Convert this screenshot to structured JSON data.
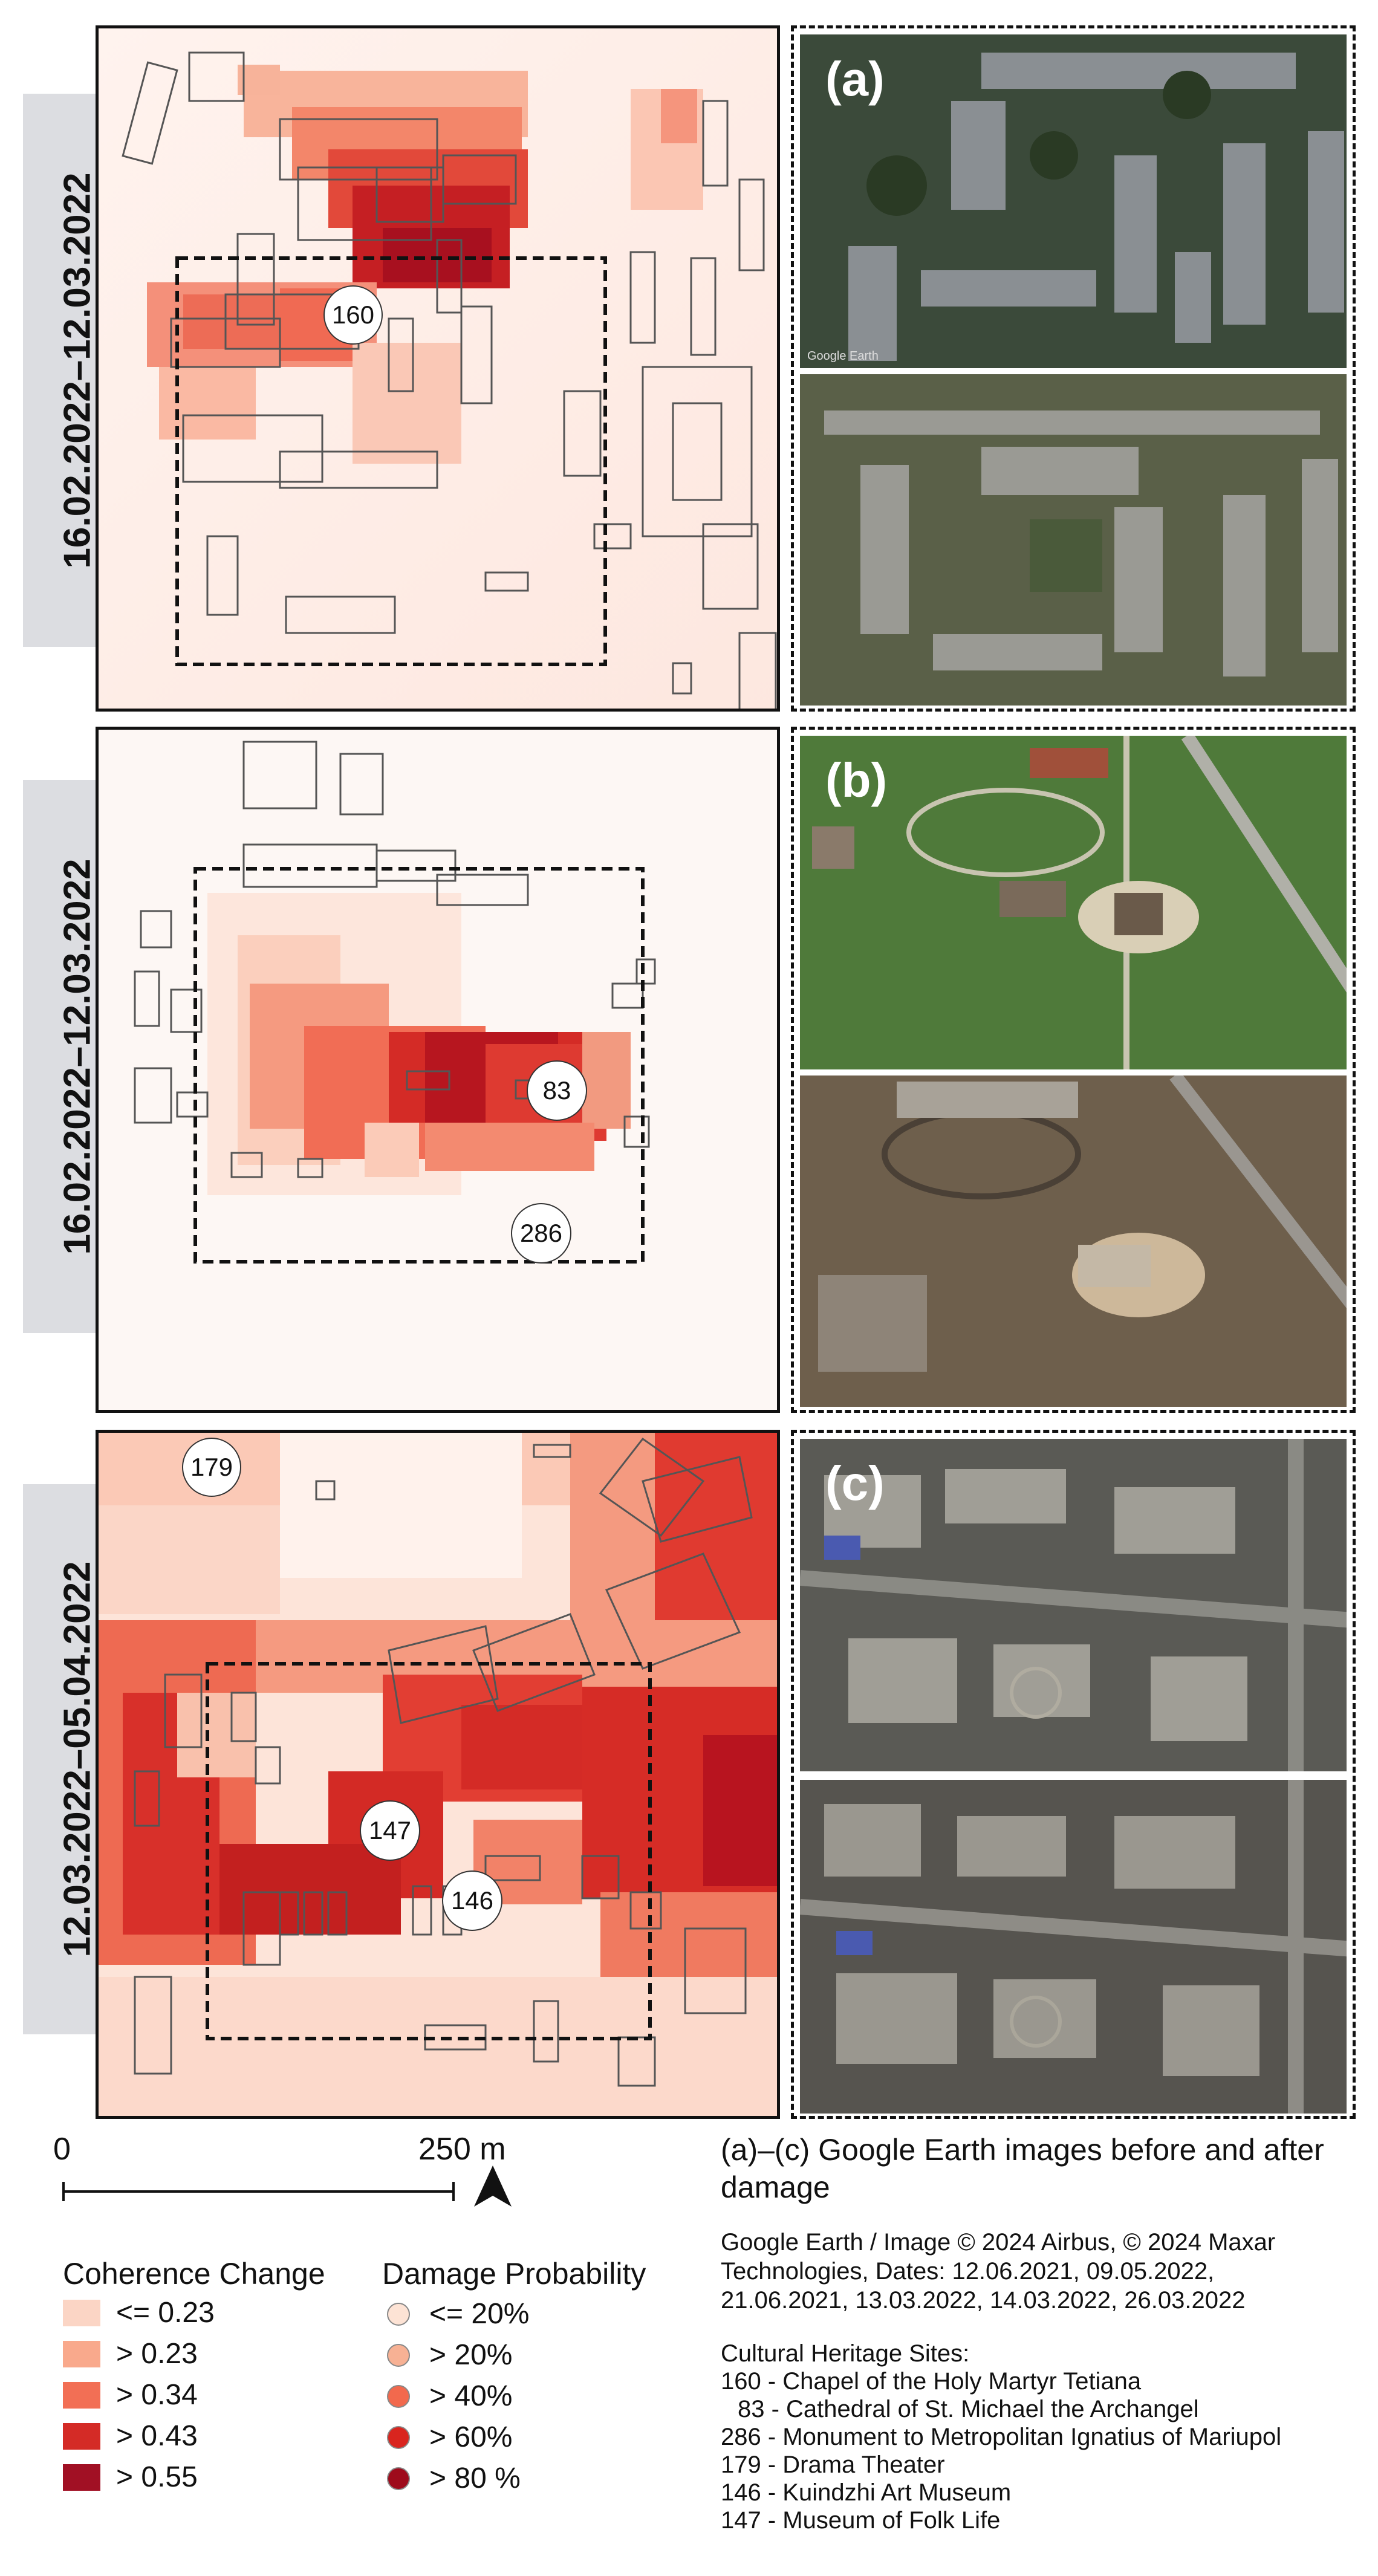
{
  "panels": [
    {
      "date_range": "16.02.2022–12.03.2022",
      "letter": "(a)",
      "sites": [
        {
          "id": "160"
        }
      ]
    },
    {
      "date_range": "16.02.2022–12.03.2022",
      "letter": "(b)",
      "sites": [
        {
          "id": "83"
        },
        {
          "id": "286"
        }
      ]
    },
    {
      "date_range": "12.03.2022–05.04.2022",
      "letter": "(c)",
      "sites": [
        {
          "id": "179"
        },
        {
          "id": "147"
        },
        {
          "id": "146"
        }
      ]
    }
  ],
  "google_watermark": "Google Earth",
  "scale_bar": {
    "start_label": "0",
    "end_label": "250 m"
  },
  "north_arrow_icon": "north-arrow-icon",
  "coherence_legend": {
    "title": "Coherence Change",
    "items": [
      {
        "label": "<= 0.23",
        "color": "#fbd5c5"
      },
      {
        "label": "> 0.23",
        "color": "#f9a98c"
      },
      {
        "label": "> 0.34",
        "color": "#f26f55"
      },
      {
        "label": "> 0.43",
        "color": "#d42b26"
      },
      {
        "label": "> 0.55",
        "color": "#a11024"
      }
    ]
  },
  "damage_legend": {
    "title": "Damage Probability",
    "items": [
      {
        "label": "<= 20%",
        "color": "#fde3d5"
      },
      {
        "label": "> 20%",
        "color": "#f7b194"
      },
      {
        "label": "> 40%",
        "color": "#f2694d"
      },
      {
        "label": "> 60%",
        "color": "#d9251f"
      },
      {
        "label": "> 80 %",
        "color": "#9e0b1c"
      }
    ]
  },
  "caption": "(a)–(c) Google Earth images before and after damage",
  "credit": {
    "lines": [
      "Google Earth / Image © 2024 Airbus, © 2024 Maxar",
      "Technologies, Dates: 12.06.2021, 09.05.2022,",
      "21.06.2021, 13.03.2022, 14.03.2022, 26.03.2022"
    ]
  },
  "heritage": {
    "title": "Cultural Heritage Sites:",
    "items": [
      "160 - Chapel of the Holy Martyr Tetiana",
      "83 - Cathedral of St. Michael the Archangel",
      "286 - Monument to Metropolitan Ignatius of Mariupol",
      "179 - Drama Theater",
      "146 - Kuindzhi Art Museum",
      "147 - Museum of Folk Life"
    ]
  }
}
